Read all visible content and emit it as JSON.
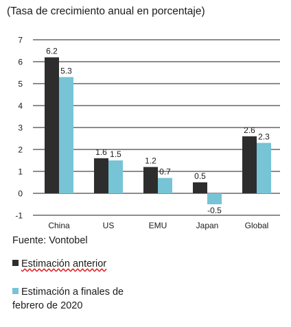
{
  "subtitle": "(Tasa de crecimiento anual en porcentaje)",
  "source": "Fuente: Vontobel",
  "colors": {
    "previous": "#2d2d2d",
    "current": "#76c4d6",
    "grid": "#1a1a1a"
  },
  "chart_data": {
    "type": "bar",
    "categories": [
      "China",
      "US",
      "EMU",
      "Japan",
      "Global"
    ],
    "series": [
      {
        "name": "Estimación anterior",
        "values": [
          6.2,
          1.6,
          1.2,
          0.5,
          2.6
        ]
      },
      {
        "name": "Estimación a finales de febrero de 2020",
        "values": [
          5.3,
          1.5,
          0.7,
          -0.5,
          2.3
        ]
      }
    ],
    "data_labels": [
      [
        "6.2",
        "1.6",
        "1.2",
        "0.5",
        "2.6"
      ],
      [
        "5.3",
        "1.5",
        "0.7",
        "-0.5",
        "2.3"
      ]
    ],
    "yticks": [
      "-1",
      "0",
      "1",
      "2",
      "3",
      "4",
      "5",
      "6",
      "7"
    ],
    "ylim": [
      -1,
      7
    ],
    "grid": true,
    "legend_position": "bottom-left"
  }
}
